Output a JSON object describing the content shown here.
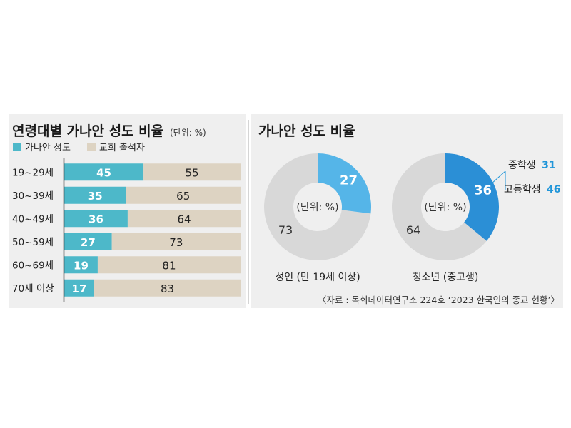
{
  "colors": {
    "gray_bg": "#efefef",
    "divider": "#c7c7c7",
    "bar_teal": "#4db8c9",
    "bar_beige": "#ddd3c2",
    "pie_light_blue": "#55b5e8",
    "pie_dark_blue": "#2b8fd6",
    "pie_rest": "#d8d8d8",
    "callout_accent": "#2196d9",
    "axis": "#333333"
  },
  "left_panel": {
    "title": "연령대별 가나안 성도 비율",
    "unit": "(단위: %)",
    "legend": [
      {
        "label": "가나안 성도",
        "color": "#4db8c9"
      },
      {
        "label": "교회 출석자",
        "color": "#ddd3c2"
      }
    ]
  },
  "right_panel": {
    "title": "가나안 성도 비율",
    "pies": [
      {
        "label": "성인 (만 19세 이상)",
        "unit": "(단위: %)",
        "highlight": "27",
        "rest": "73"
      },
      {
        "label": "청소년 (중고생)",
        "unit": "(단위: %)",
        "highlight": "36",
        "rest": "64"
      }
    ],
    "callouts": [
      {
        "text": "중학생",
        "value": "31"
      },
      {
        "text": "고등학생",
        "value": "46"
      }
    ]
  },
  "source": "〈자료 : 목회데이터연구소 224호 ‘2023 한국인의 종교 현황’〉",
  "chart_data": [
    {
      "type": "bar",
      "stacked": true,
      "orientation": "horizontal",
      "title": "연령대별 가나안 성도 비율",
      "unit": "%",
      "categories": [
        "19~29세",
        "30~39세",
        "40~49세",
        "50~59세",
        "60~69세",
        "70세 이상"
      ],
      "series": [
        {
          "name": "가나안 성도",
          "values": [
            45,
            35,
            36,
            27,
            19,
            17
          ]
        },
        {
          "name": "교회 출석자",
          "values": [
            55,
            65,
            64,
            73,
            81,
            83
          ]
        }
      ],
      "xlim": [
        0,
        100
      ],
      "grid": false,
      "legend": "top-left"
    },
    {
      "type": "pie",
      "donut": true,
      "title": "가나안 성도 비율",
      "label": "성인 (만 19세 이상)",
      "unit": "%",
      "values": [
        27,
        73
      ]
    },
    {
      "type": "pie",
      "donut": true,
      "title": "가나안 성도 비율",
      "label": "청소년 (중고생)",
      "unit": "%",
      "values": [
        36,
        64
      ],
      "breakdown": [
        {
          "name": "중학생",
          "value": 31
        },
        {
          "name": "고등학생",
          "value": 46
        }
      ]
    }
  ]
}
